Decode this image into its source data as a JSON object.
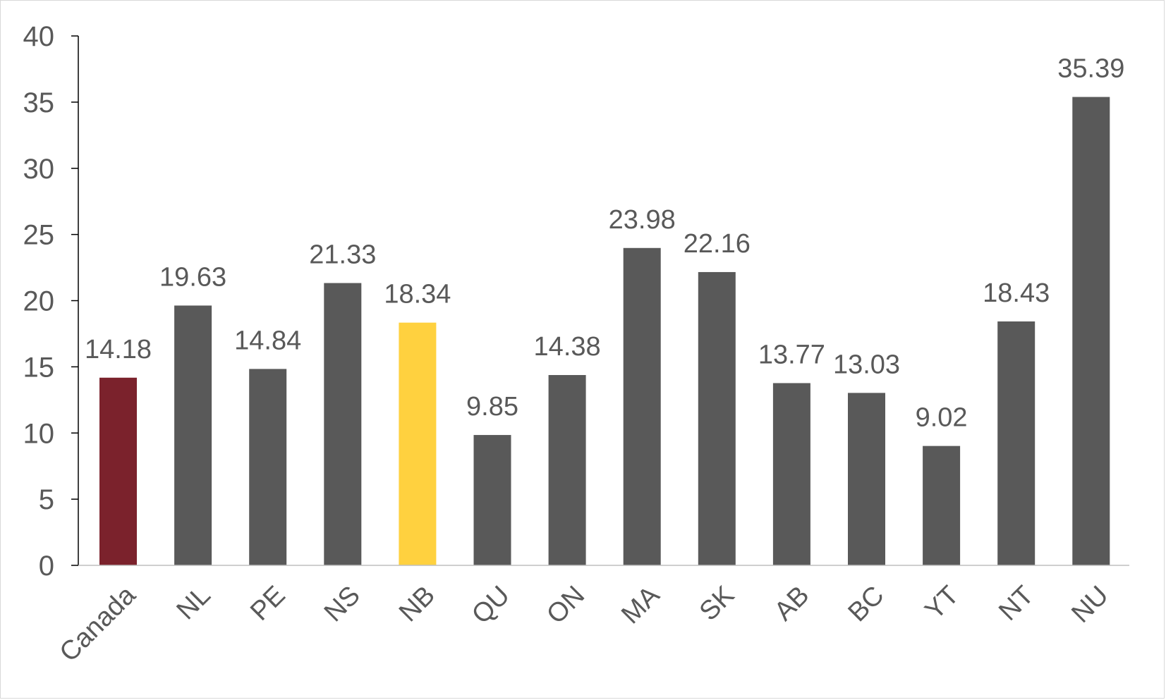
{
  "chart_data": {
    "type": "bar",
    "title": "",
    "xlabel": "",
    "ylabel": "",
    "categories": [
      "Canada",
      "NL",
      "PE",
      "NS",
      "NB",
      "QU",
      "ON",
      "MA",
      "SK",
      "AB",
      "BC",
      "YT",
      "NT",
      "NU"
    ],
    "values": [
      14.18,
      19.63,
      14.84,
      21.33,
      18.34,
      9.85,
      14.38,
      23.98,
      22.16,
      13.77,
      13.03,
      9.02,
      18.43,
      35.39
    ],
    "value_labels": [
      "14.18",
      "19.63",
      "14.84",
      "21.33",
      "18.34",
      "9.85",
      "14.38",
      "23.98",
      "22.16",
      "13.77",
      "13.03",
      "9.02",
      "18.43",
      "35.39"
    ],
    "ylim": [
      0,
      40
    ],
    "yticks": [
      "0",
      "5",
      "10",
      "15",
      "20",
      "25",
      "30",
      "35",
      "40"
    ],
    "grid": false,
    "legend": "none",
    "colors": {
      "default_bar": "#595959",
      "canada_bar": "#7b222c",
      "nb_bar": "#ffd13f",
      "axis": "#000000",
      "text": "#595959"
    },
    "bar_colors": [
      "#7b222c",
      "#595959",
      "#595959",
      "#595959",
      "#ffd13f",
      "#595959",
      "#595959",
      "#595959",
      "#595959",
      "#595959",
      "#595959",
      "#595959",
      "#595959",
      "#595959"
    ]
  }
}
